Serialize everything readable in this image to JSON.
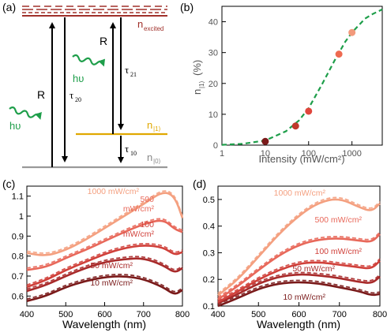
{
  "panel_labels": {
    "a": "(a)",
    "b": "(b)",
    "c": "(c)",
    "d": "(d)"
  },
  "diagram": {
    "level_excited_label": "n",
    "level_excited_sub": "excited",
    "level_1_label": "n",
    "level_1_sub": "|1⟩",
    "level_0_label": "n",
    "level_0_sub": "|0⟩",
    "R_left": "R",
    "R_right": "R",
    "tau20": "τ",
    "tau20_sub": "20",
    "tau21": "τ",
    "tau21_sub": "21",
    "tau10": "τ",
    "tau10_sub": "10",
    "photon_label": "hυ",
    "colors": {
      "excited": "#a0302a",
      "level1": "#e0a800",
      "level0": "#999999",
      "photon": "#1e9e4a",
      "arrows": "#000000"
    }
  },
  "chart_data": [
    {
      "panel": "b",
      "type": "scatter",
      "xlabel": "Intensity (mW/cm²)",
      "ylabel": "n",
      "ylabel_sub": "|1⟩",
      "ylabel_unit": " (%)",
      "xscale": "log",
      "xlim": [
        1,
        5000
      ],
      "ylim": [
        0,
        45
      ],
      "xticks": [
        "1",
        "10",
        "100",
        "1000"
      ],
      "yticks": [
        "0",
        "10",
        "20",
        "30",
        "40"
      ],
      "points": [
        {
          "x": 10,
          "y": 1.2,
          "color": "#7a1a1a"
        },
        {
          "x": 50,
          "y": 6.2,
          "color": "#c0392b"
        },
        {
          "x": 100,
          "y": 11.0,
          "color": "#e0463c"
        },
        {
          "x": 500,
          "y": 29.5,
          "color": "#ee6a50"
        },
        {
          "x": 1000,
          "y": 36.5,
          "color": "#f29a7c"
        }
      ],
      "fit": {
        "color": "#1e9e4a",
        "style": "dashed",
        "x": [
          1,
          3,
          10,
          30,
          60,
          100,
          200,
          400,
          700,
          1000,
          2000,
          3000,
          5000
        ],
        "y": [
          0.1,
          0.4,
          1.5,
          4.5,
          8.0,
          12.0,
          19.5,
          27.5,
          33.5,
          36.5,
          41.0,
          42.5,
          44.0
        ]
      }
    },
    {
      "panel": "c",
      "type": "line",
      "xlabel": "Wavelength (nm)",
      "xlim": [
        400,
        800
      ],
      "ylim": [
        0.55,
        1.15
      ],
      "xticks": [
        "400",
        "500",
        "600",
        "700",
        "800"
      ],
      "yticks": [
        "0.6",
        "0.7",
        "0.8",
        "0.9",
        "1",
        "1.1"
      ],
      "series": [
        {
          "name": "10 mW/cm²",
          "color": "#7a1a1a",
          "x": [
            400,
            450,
            500,
            550,
            600,
            650,
            700,
            750,
            780,
            800
          ],
          "y": [
            0.575,
            0.6,
            0.645,
            0.675,
            0.695,
            0.7,
            0.685,
            0.645,
            0.605,
            0.63
          ]
        },
        {
          "name": "50 mW/cm²",
          "color": "#a82a2a",
          "x": [
            400,
            450,
            500,
            550,
            600,
            650,
            700,
            750,
            780,
            800
          ],
          "y": [
            0.625,
            0.655,
            0.7,
            0.74,
            0.77,
            0.785,
            0.79,
            0.755,
            0.715,
            0.74
          ]
        },
        {
          "name": "100\nmW/cm²",
          "color": "#d0403a",
          "x": [
            400,
            450,
            500,
            550,
            600,
            650,
            700,
            750,
            780,
            800
          ],
          "y": [
            0.645,
            0.68,
            0.73,
            0.77,
            0.81,
            0.84,
            0.855,
            0.845,
            0.805,
            0.82
          ]
        },
        {
          "name": "500\nmW/cm²",
          "color": "#e8685a",
          "x": [
            400,
            450,
            500,
            550,
            600,
            650,
            700,
            750,
            780,
            800
          ],
          "y": [
            0.73,
            0.745,
            0.79,
            0.83,
            0.875,
            0.92,
            0.96,
            0.985,
            0.935,
            0.92
          ]
        },
        {
          "name": "1000 mW/cm²",
          "color": "#f4a080",
          "x": [
            400,
            450,
            500,
            550,
            600,
            650,
            700,
            750,
            780,
            800
          ],
          "y": [
            0.815,
            0.8,
            0.83,
            0.88,
            0.94,
            1.0,
            1.06,
            1.125,
            1.1,
            0.99
          ]
        }
      ]
    },
    {
      "panel": "d",
      "type": "line",
      "xlabel": "Wavelength (nm)",
      "xlim": [
        400,
        800
      ],
      "ylim": [
        0.1,
        0.55
      ],
      "xticks": [
        "400",
        "500",
        "600",
        "700",
        "800"
      ],
      "yticks": [
        "0.1",
        "0.2",
        "0.3",
        "0.4",
        "0.5"
      ],
      "series": [
        {
          "name": "10 mW/cm²",
          "color": "#7a1a1a",
          "x": [
            400,
            450,
            500,
            550,
            600,
            650,
            700,
            750,
            780,
            800
          ],
          "y": [
            0.1,
            0.13,
            0.165,
            0.185,
            0.19,
            0.185,
            0.17,
            0.155,
            0.14,
            0.145
          ]
        },
        {
          "name": "50 mW/cm²",
          "color": "#a82a2a",
          "x": [
            400,
            450,
            500,
            550,
            600,
            650,
            700,
            750,
            780,
            800
          ],
          "y": [
            0.11,
            0.145,
            0.185,
            0.21,
            0.22,
            0.215,
            0.205,
            0.19,
            0.185,
            0.21
          ]
        },
        {
          "name": "100 mW/cm²",
          "color": "#d0403a",
          "x": [
            400,
            450,
            500,
            550,
            600,
            650,
            700,
            750,
            780,
            800
          ],
          "y": [
            0.115,
            0.155,
            0.2,
            0.235,
            0.26,
            0.265,
            0.255,
            0.245,
            0.24,
            0.27
          ]
        },
        {
          "name": "500 mW/cm²",
          "color": "#e8685a",
          "x": [
            400,
            450,
            500,
            550,
            600,
            650,
            700,
            750,
            780,
            800
          ],
          "y": [
            0.125,
            0.175,
            0.235,
            0.29,
            0.33,
            0.35,
            0.355,
            0.345,
            0.34,
            0.37
          ]
        },
        {
          "name": "1000 mW/cm²",
          "color": "#f4a080",
          "x": [
            400,
            450,
            500,
            550,
            600,
            650,
            700,
            750,
            780,
            800
          ],
          "y": [
            0.14,
            0.2,
            0.285,
            0.37,
            0.44,
            0.49,
            0.505,
            0.47,
            0.455,
            0.485
          ]
        }
      ]
    }
  ]
}
